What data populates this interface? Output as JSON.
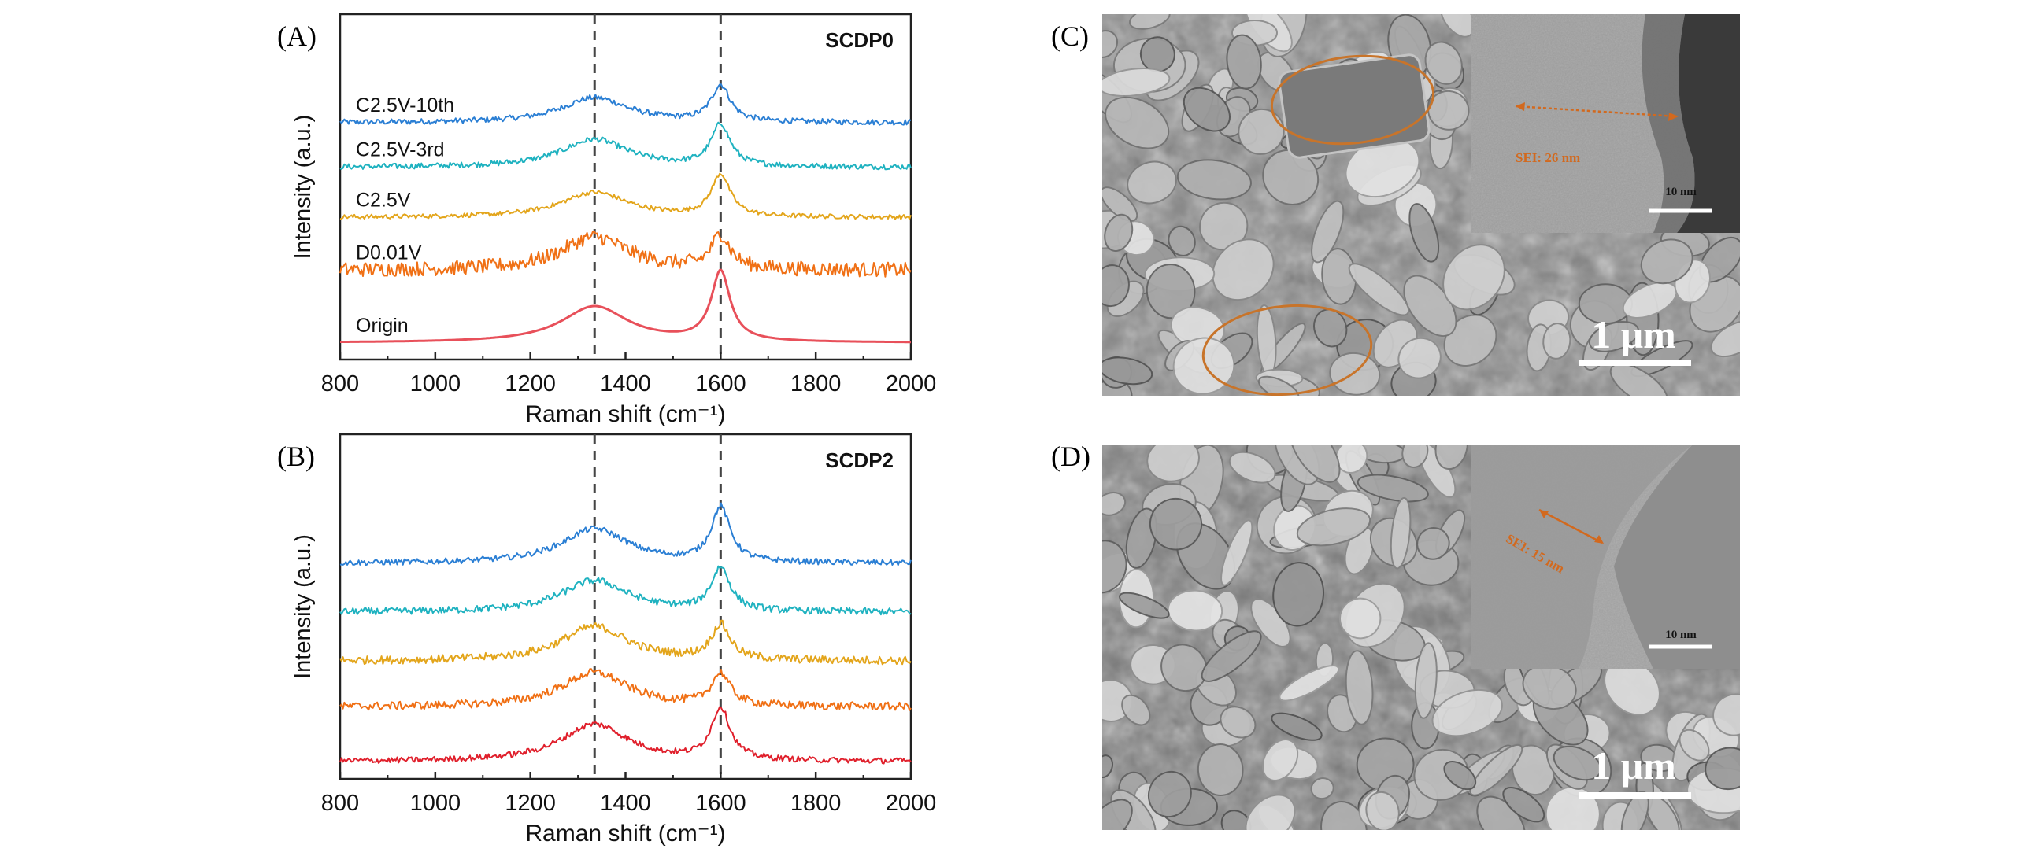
{
  "panels": {
    "A": {
      "label": "(A)"
    },
    "B": {
      "label": "(B)"
    },
    "C": {
      "label": "(C)",
      "scale_bar": "1 μm",
      "inset_scale": "10 nm",
      "inset_annotation": "SEI: 26 nm"
    },
    "D": {
      "label": "(D)",
      "scale_bar": "1 μm",
      "inset_scale": "10 nm",
      "inset_annotation": "SEI: 15 nm"
    }
  },
  "colors": {
    "C2.5V-10th": "#2b7fd4",
    "C2.5V-3rd": "#1fb2c0",
    "C2.5V": "#e3a51b",
    "D0.01V": "#f07015",
    "Origin": "#e8505a",
    "Origin_B": "#e0202c",
    "sem_circle": "#c8742a"
  },
  "chart_data": [
    {
      "type": "line",
      "panel": "A",
      "title": "SCDP0",
      "xlabel": "Raman shift (cm⁻¹)",
      "ylabel": "Intensity (a.u.)",
      "xlim": [
        800,
        2000
      ],
      "xticks": [
        800,
        1000,
        1200,
        1400,
        1600,
        1800,
        2000
      ],
      "reference_lines_x": [
        1335,
        1600
      ],
      "series": [
        {
          "name": "C2.5V-10th",
          "color_key": "C2.5V-10th",
          "baseline": 4.25,
          "d_height": 0.45,
          "g_height": 0.65,
          "noise": 0.05
        },
        {
          "name": "C2.5V-3rd",
          "color_key": "C2.5V-3rd",
          "baseline": 3.45,
          "d_height": 0.5,
          "g_height": 0.75,
          "noise": 0.05
        },
        {
          "name": "C2.5V",
          "color_key": "C2.5V",
          "baseline": 2.55,
          "d_height": 0.45,
          "g_height": 0.75,
          "noise": 0.04
        },
        {
          "name": "D0.01V",
          "color_key": "D0.01V",
          "baseline": 1.6,
          "d_height": 0.6,
          "g_height": 0.6,
          "noise": 0.13
        },
        {
          "name": "Origin",
          "color_key": "Origin",
          "baseline": 0.3,
          "d_height": 0.65,
          "g_height": 1.25,
          "noise": 0.0
        }
      ]
    },
    {
      "type": "line",
      "panel": "B",
      "title": "SCDP2",
      "xlabel": "Raman shift (cm⁻¹)",
      "ylabel": "Intensity (a.u.)",
      "xlim": [
        800,
        2000
      ],
      "xticks": [
        800,
        1000,
        1200,
        1400,
        1600,
        1800,
        2000
      ],
      "reference_lines_x": [
        1335,
        1600
      ],
      "series": [
        {
          "color_key": "C2.5V-10th",
          "baseline": 3.75,
          "d_height": 0.6,
          "g_height": 0.95,
          "noise": 0.05
        },
        {
          "color_key": "C2.5V-3rd",
          "baseline": 2.9,
          "d_height": 0.55,
          "g_height": 0.75,
          "noise": 0.06
        },
        {
          "color_key": "C2.5V",
          "baseline": 2.05,
          "d_height": 0.6,
          "g_height": 0.6,
          "noise": 0.07
        },
        {
          "color_key": "D0.01V",
          "baseline": 1.25,
          "d_height": 0.6,
          "g_height": 0.55,
          "noise": 0.07
        },
        {
          "color_key": "Origin_B",
          "baseline": 0.3,
          "d_height": 0.65,
          "g_height": 0.9,
          "noise": 0.05
        }
      ]
    }
  ]
}
